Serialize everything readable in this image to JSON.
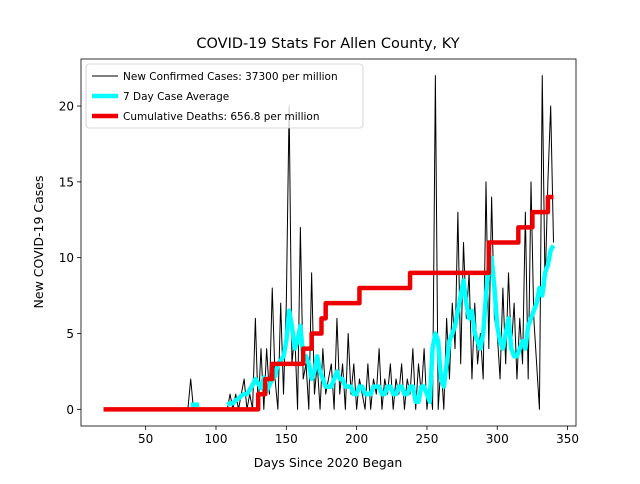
{
  "chart_data": {
    "type": "line",
    "title": "COVID-19 Stats For Allen County, KY",
    "xlabel": "Days Since 2020 Began",
    "ylabel": "New COVID-19 Cases",
    "xlim": [
      4,
      356
    ],
    "ylim": [
      -1.1,
      23.1
    ],
    "xticks": [
      50,
      100,
      150,
      200,
      250,
      300,
      350
    ],
    "yticks": [
      0,
      5,
      10,
      15,
      20
    ],
    "legend": "upper left",
    "series": [
      {
        "name": "New Confirmed Cases: 37300 per million",
        "color": "#000000",
        "width": 1,
        "x": [
          80,
          82,
          84,
          86,
          88,
          90,
          92,
          94,
          96,
          98,
          100,
          102,
          104,
          106,
          108,
          110,
          112,
          114,
          116,
          118,
          120,
          122,
          124,
          126,
          128,
          130,
          132,
          134,
          136,
          138,
          140,
          142,
          144,
          146,
          148,
          150,
          152,
          154,
          156,
          158,
          160,
          162,
          164,
          166,
          168,
          170,
          172,
          174,
          176,
          178,
          180,
          182,
          184,
          186,
          188,
          190,
          192,
          194,
          196,
          198,
          200,
          202,
          204,
          206,
          208,
          210,
          212,
          214,
          216,
          218,
          220,
          222,
          224,
          226,
          228,
          230,
          232,
          234,
          236,
          238,
          240,
          242,
          244,
          246,
          248,
          250,
          252,
          254,
          256,
          258,
          260,
          262,
          264,
          266,
          268,
          270,
          272,
          274,
          276,
          278,
          280,
          282,
          284,
          286,
          288,
          290,
          292,
          294,
          296,
          298,
          300,
          302,
          304,
          306,
          308,
          310,
          312,
          314,
          316,
          318,
          320,
          322,
          324,
          326,
          328,
          330,
          332,
          334,
          336,
          338,
          340
        ],
        "values": [
          0,
          2,
          0,
          0,
          0,
          0,
          0,
          0,
          0,
          0,
          0,
          0,
          0,
          0,
          0,
          1,
          0,
          1,
          0,
          1,
          2,
          0,
          1,
          0,
          6,
          0,
          4,
          0,
          4,
          1,
          8,
          2,
          0,
          7,
          1,
          7,
          20,
          3,
          5,
          0,
          12,
          2,
          3,
          0,
          9,
          1,
          3,
          0,
          4,
          1,
          2,
          3,
          0,
          6,
          1,
          3,
          0,
          5,
          1,
          3,
          0,
          2,
          1,
          0,
          3,
          0,
          2,
          1,
          4,
          0,
          2,
          1,
          3,
          0,
          2,
          1,
          3,
          0,
          2,
          1,
          4,
          0,
          3,
          1,
          4,
          0,
          2,
          0,
          22,
          0,
          3,
          0,
          6,
          2,
          7,
          4,
          13,
          3,
          11,
          6,
          9,
          2,
          7,
          3,
          5,
          2,
          15,
          4,
          14,
          6,
          5,
          2,
          8,
          3,
          9,
          4,
          7,
          2,
          6,
          3,
          13,
          2,
          15,
          6,
          3,
          0,
          22,
          8,
          15,
          20,
          11
        ]
      },
      {
        "name": "7 Day Case Average",
        "color": "#00ffff",
        "width": 4.5,
        "x": [
          80,
          82,
          84,
          86,
          88,
          90,
          92,
          94,
          96,
          98,
          100,
          102,
          104,
          106,
          108,
          110,
          112,
          114,
          116,
          118,
          120,
          122,
          124,
          126,
          128,
          130,
          132,
          134,
          136,
          138,
          140,
          142,
          144,
          146,
          148,
          150,
          152,
          154,
          156,
          158,
          160,
          162,
          164,
          166,
          168,
          170,
          172,
          174,
          176,
          178,
          180,
          182,
          184,
          186,
          188,
          190,
          192,
          194,
          196,
          198,
          200,
          202,
          204,
          206,
          208,
          210,
          212,
          214,
          216,
          218,
          220,
          222,
          224,
          226,
          228,
          230,
          232,
          234,
          236,
          238,
          240,
          242,
          244,
          246,
          248,
          250,
          252,
          254,
          256,
          258,
          260,
          262,
          264,
          266,
          268,
          270,
          272,
          274,
          276,
          278,
          280,
          282,
          284,
          286,
          288,
          290,
          292,
          294,
          296,
          298,
          300,
          302,
          304,
          306,
          308,
          310,
          312,
          314,
          316,
          318,
          320,
          322,
          324,
          326,
          328,
          330,
          332,
          334,
          336,
          338,
          340
        ],
        "values": [
          null,
          0.3,
          0.3,
          0.3,
          0.3,
          null,
          null,
          null,
          null,
          null,
          null,
          null,
          null,
          null,
          0.3,
          0.4,
          0.4,
          0.6,
          0.7,
          0.9,
          1.0,
          1.0,
          1.3,
          1.6,
          2.0,
          1.7,
          1.4,
          2.1,
          1.2,
          1.6,
          2.0,
          2.2,
          3.0,
          3.2,
          3.5,
          4.5,
          6.5,
          5.5,
          4.0,
          4.5,
          5.5,
          3.5,
          3.5,
          3.0,
          2.0,
          2.5,
          3.5,
          2.5,
          2.0,
          1.5,
          1.5,
          1.5,
          2.0,
          2.5,
          2.0,
          2.0,
          1.5,
          1.5,
          1.5,
          1.0,
          1.0,
          1.5,
          1.5,
          1.0,
          1.0,
          1.0,
          1.5,
          1.5,
          1.5,
          1.0,
          1.0,
          1.5,
          1.5,
          1.0,
          1.0,
          1.5,
          1.5,
          1.0,
          1.0,
          1.5,
          1.5,
          0.5,
          0.5,
          1.5,
          1.5,
          1.0,
          0.5,
          4.0,
          5.0,
          4.5,
          2.0,
          1.5,
          3.0,
          4.5,
          5.0,
          5.5,
          6.5,
          7.5,
          8.5,
          7.0,
          6.0,
          6.5,
          5.0,
          4.5,
          4.0,
          5.0,
          7.5,
          9.5,
          10.0,
          8.0,
          5.5,
          4.5,
          4.0,
          5.0,
          6.0,
          4.0,
          3.5,
          3.5,
          4.0,
          4.5,
          4.0,
          5.5,
          6.0,
          6.5,
          7.0,
          8.0,
          7.5,
          9.0,
          9.5,
          10.5,
          10.8
        ]
      },
      {
        "name": "Cumulative Deaths: 656.8 per million",
        "color": "#ee0000",
        "width": 4.5,
        "drawstyle": "steps-post",
        "x": [
          20,
          130,
          135,
          140,
          162,
          168,
          175,
          178,
          202,
          238,
          294,
          315,
          325,
          336,
          340
        ],
        "values": [
          0,
          1,
          2,
          3,
          4,
          5,
          6,
          7,
          8,
          9,
          11,
          12,
          13,
          14,
          14
        ]
      }
    ]
  }
}
